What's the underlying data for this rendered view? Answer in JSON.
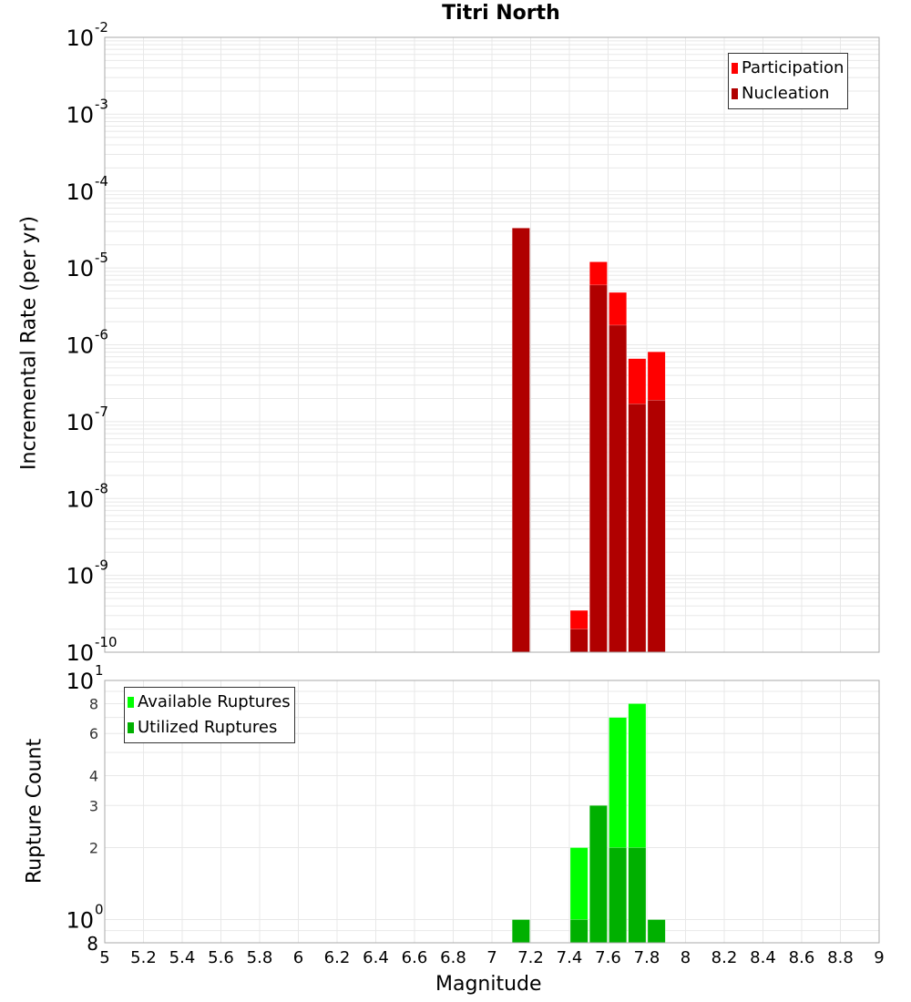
{
  "chart_data": [
    {
      "type": "bar",
      "title": "Titri North",
      "xlabel": "Magnitude",
      "ylabel": "Incremental Rate (per yr)",
      "yscale": "log",
      "xlim": [
        5,
        9
      ],
      "ylim": [
        1e-10,
        0.01
      ],
      "grid": true,
      "legend_position": "top-right",
      "x_ticks": [
        5,
        5.2,
        5.4,
        5.6,
        5.8,
        6,
        6.2,
        6.4,
        6.6,
        6.8,
        7,
        7.2,
        7.4,
        7.6,
        7.8,
        8,
        8.2,
        8.4,
        8.6,
        8.8,
        9
      ],
      "y_ticks": [
        "10^-10",
        "10^-9",
        "10^-8",
        "10^-7",
        "10^-6",
        "10^-5",
        "10^-4",
        "10^-3",
        "10^-2"
      ],
      "bar_width": 0.1,
      "x": [
        7.15,
        7.45,
        7.55,
        7.65,
        7.75,
        7.85
      ],
      "series": [
        {
          "name": "Participation",
          "color": "#ff0000",
          "values": [
            3.3e-05,
            3.5e-10,
            1.2e-05,
            4.8e-06,
            6.6e-07,
            8.1e-07
          ]
        },
        {
          "name": "Nucleation",
          "color": "#b00000",
          "values": [
            3.3e-05,
            2e-10,
            6e-06,
            1.8e-06,
            1.7e-07,
            1.9e-07
          ]
        }
      ]
    },
    {
      "type": "bar",
      "title": "",
      "xlabel": "Magnitude",
      "ylabel": "Rupture Count",
      "yscale": "log",
      "xlim": [
        5,
        9
      ],
      "ylim": [
        0.8,
        10
      ],
      "grid": true,
      "legend_position": "top-left",
      "x_ticks": [
        5,
        5.2,
        5.4,
        5.6,
        5.8,
        6,
        6.2,
        6.4,
        6.6,
        6.8,
        7,
        7.2,
        7.4,
        7.6,
        7.8,
        8,
        8.2,
        8.4,
        8.6,
        8.8,
        9
      ],
      "y_ticks": [
        "8",
        "10^0",
        "2",
        "3",
        "4",
        "6",
        "8",
        "10^1"
      ],
      "bar_width": 0.1,
      "x": [
        7.15,
        7.45,
        7.55,
        7.65,
        7.75,
        7.85
      ],
      "series": [
        {
          "name": "Available Ruptures",
          "color": "#00ff00",
          "values": [
            1,
            2,
            3,
            7,
            8,
            1
          ]
        },
        {
          "name": "Utilized Ruptures",
          "color": "#00b000",
          "values": [
            1,
            1,
            3,
            2,
            2,
            1
          ]
        }
      ]
    }
  ],
  "labels": {
    "title": "Titri North",
    "top_ylabel": "Incremental Rate (per yr)",
    "bottom_ylabel": "Rupture Count",
    "xlabel": "Magnitude",
    "top_legend": [
      "Participation",
      "Nucleation"
    ],
    "bottom_legend": [
      "Available Ruptures",
      "Utilized Ruptures"
    ]
  },
  "colors": {
    "participation": "#ff0000",
    "nucleation": "#b00000",
    "available": "#00ff00",
    "utilized": "#00b000",
    "grid": "#e8e8e8",
    "axis": "#aaaaaa"
  }
}
